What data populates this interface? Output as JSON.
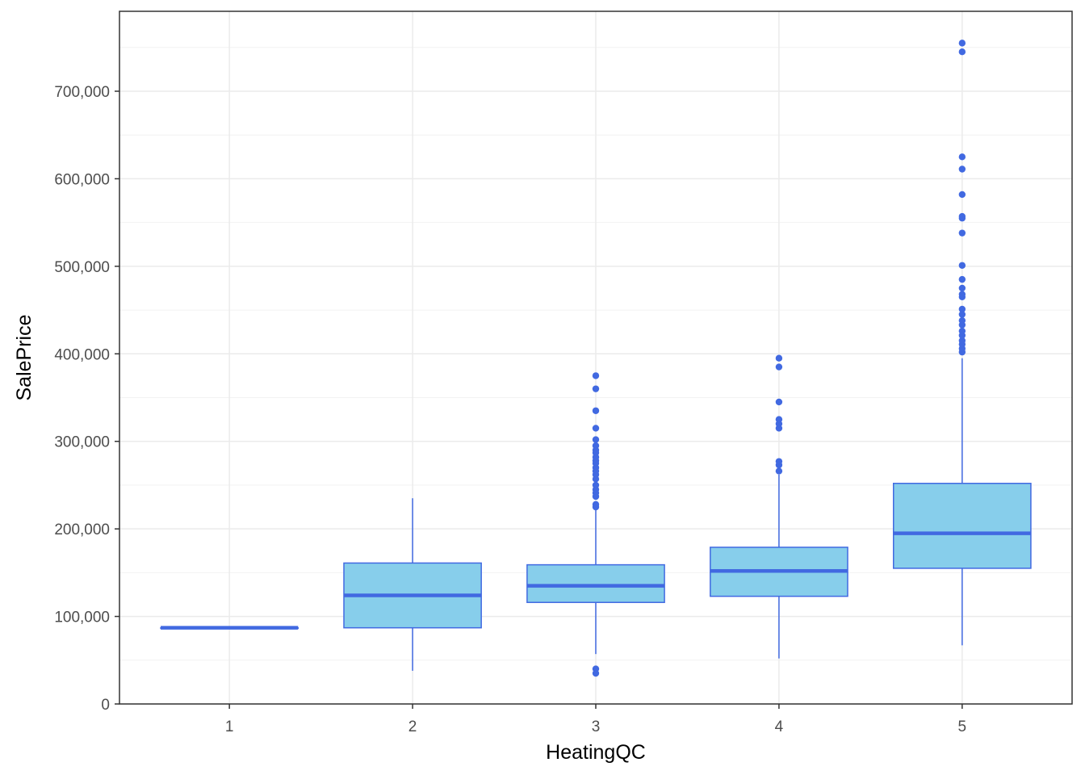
{
  "chart_data": {
    "type": "boxplot",
    "title": "",
    "xlabel": "HeatingQC",
    "ylabel": "SalePrice",
    "ylim": [
      0,
      790000
    ],
    "y_ticks": [
      0,
      100000,
      200000,
      300000,
      400000,
      500000,
      600000,
      700000
    ],
    "y_tick_labels": [
      "0",
      "100,000",
      "200,000",
      "300,000",
      "400,000",
      "500,000",
      "600,000",
      "700,000"
    ],
    "categories": [
      "1",
      "2",
      "3",
      "4",
      "5"
    ],
    "box_fill": "#87ceeb",
    "box_line": "#4169e1",
    "boxes": [
      {
        "category": "1",
        "min": 87000,
        "q1": 87000,
        "median": 87000,
        "q3": 87000,
        "max": 87000,
        "outliers": []
      },
      {
        "category": "2",
        "min": 37900,
        "q1": 87000,
        "median": 124000,
        "q3": 161000,
        "max": 235000,
        "outliers": []
      },
      {
        "category": "3",
        "min": 57000,
        "q1": 116000,
        "median": 135000,
        "q3": 159000,
        "max": 222000,
        "outliers": [
          35000,
          40000,
          225000,
          228000,
          237000,
          241000,
          245000,
          250000,
          257000,
          262000,
          266000,
          270000,
          275000,
          278000,
          282000,
          287000,
          290000,
          295000,
          302000,
          315000,
          335000,
          360000,
          375000
        ]
      },
      {
        "category": "4",
        "min": 52000,
        "q1": 123000,
        "median": 152000,
        "q3": 179000,
        "max": 262000,
        "outliers": [
          266000,
          273000,
          277000,
          315000,
          320000,
          325000,
          345000,
          385000,
          395000
        ]
      },
      {
        "category": "5",
        "min": 67000,
        "q1": 155000,
        "median": 195000,
        "q3": 252000,
        "max": 395000,
        "outliers": [
          402000,
          406000,
          411000,
          415000,
          421000,
          426000,
          433000,
          438000,
          445000,
          451000,
          465000,
          468000,
          475000,
          485000,
          501000,
          538000,
          555000,
          557000,
          582000,
          611000,
          625000,
          745000,
          755000
        ]
      }
    ]
  }
}
